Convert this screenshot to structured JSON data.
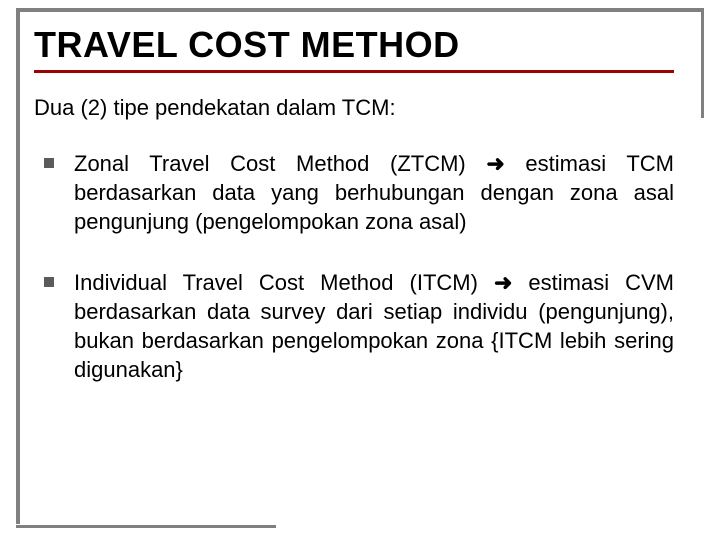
{
  "slide": {
    "title": "TRAVEL COST METHOD",
    "intro": "Dua (2) tipe pendekatan dalam TCM:",
    "title_underline_color": "#a00000",
    "background_color": "#ffffff",
    "frame_color": "#808080",
    "bullet_marker_color": "#5b5b5b",
    "title_fontsize": 36,
    "body_fontsize": 22,
    "bullets": [
      {
        "lead": "Zonal Travel Cost Method (ZTCM) ",
        "arrow": "➜",
        "tail": "  estimasi TCM berdasarkan data yang berhubungan dengan zona asal pengunjung (pengelompokan zona asal)"
      },
      {
        "lead": "Individual Travel Cost Method (ITCM)  ",
        "arrow": "➜",
        "tail": "   estimasi CVM berdasarkan data survey dari setiap individu (pengunjung), bukan berdasarkan pengelompokan zona {ITCM lebih sering digunakan}"
      }
    ]
  }
}
